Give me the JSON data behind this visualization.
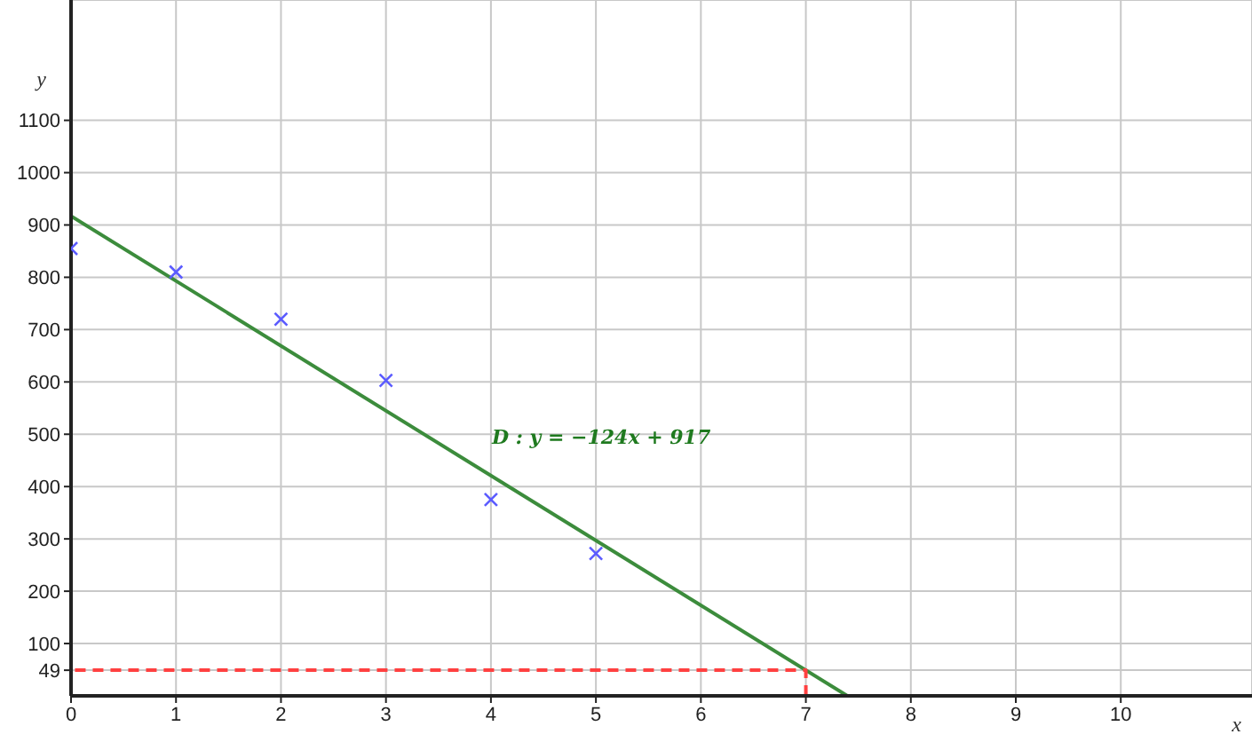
{
  "chart_data": {
    "type": "scatter",
    "xlabel": "x",
    "ylabel": "y",
    "xlim": [
      0,
      11.25
    ],
    "ylim": [
      0,
      1330
    ],
    "xticks": [
      0,
      1,
      2,
      3,
      4,
      5,
      6,
      7,
      8,
      9,
      10
    ],
    "yticks": [
      49,
      100,
      200,
      300,
      400,
      500,
      600,
      700,
      800,
      900,
      1000,
      1100
    ],
    "grid": true,
    "annotations": [
      "D : y = −124x + 917"
    ],
    "series": [
      {
        "color": "#5b5bff",
        "marker": "cross",
        "x": [
          0,
          1,
          2,
          3,
          4,
          5
        ],
        "values": [
          855,
          810,
          720,
          603,
          375,
          272
        ]
      },
      {
        "type": "line",
        "color": "#3c8c3c",
        "marker": "none",
        "line_style": "solid",
        "x": [
          0,
          7.395
        ],
        "values": [
          917,
          0
        ]
      },
      {
        "type": "line",
        "color": "#ff4040",
        "marker": "none",
        "line_style": "dashed",
        "x": [
          7,
          7,
          0
        ],
        "values": [
          0,
          49,
          49
        ]
      }
    ]
  }
}
